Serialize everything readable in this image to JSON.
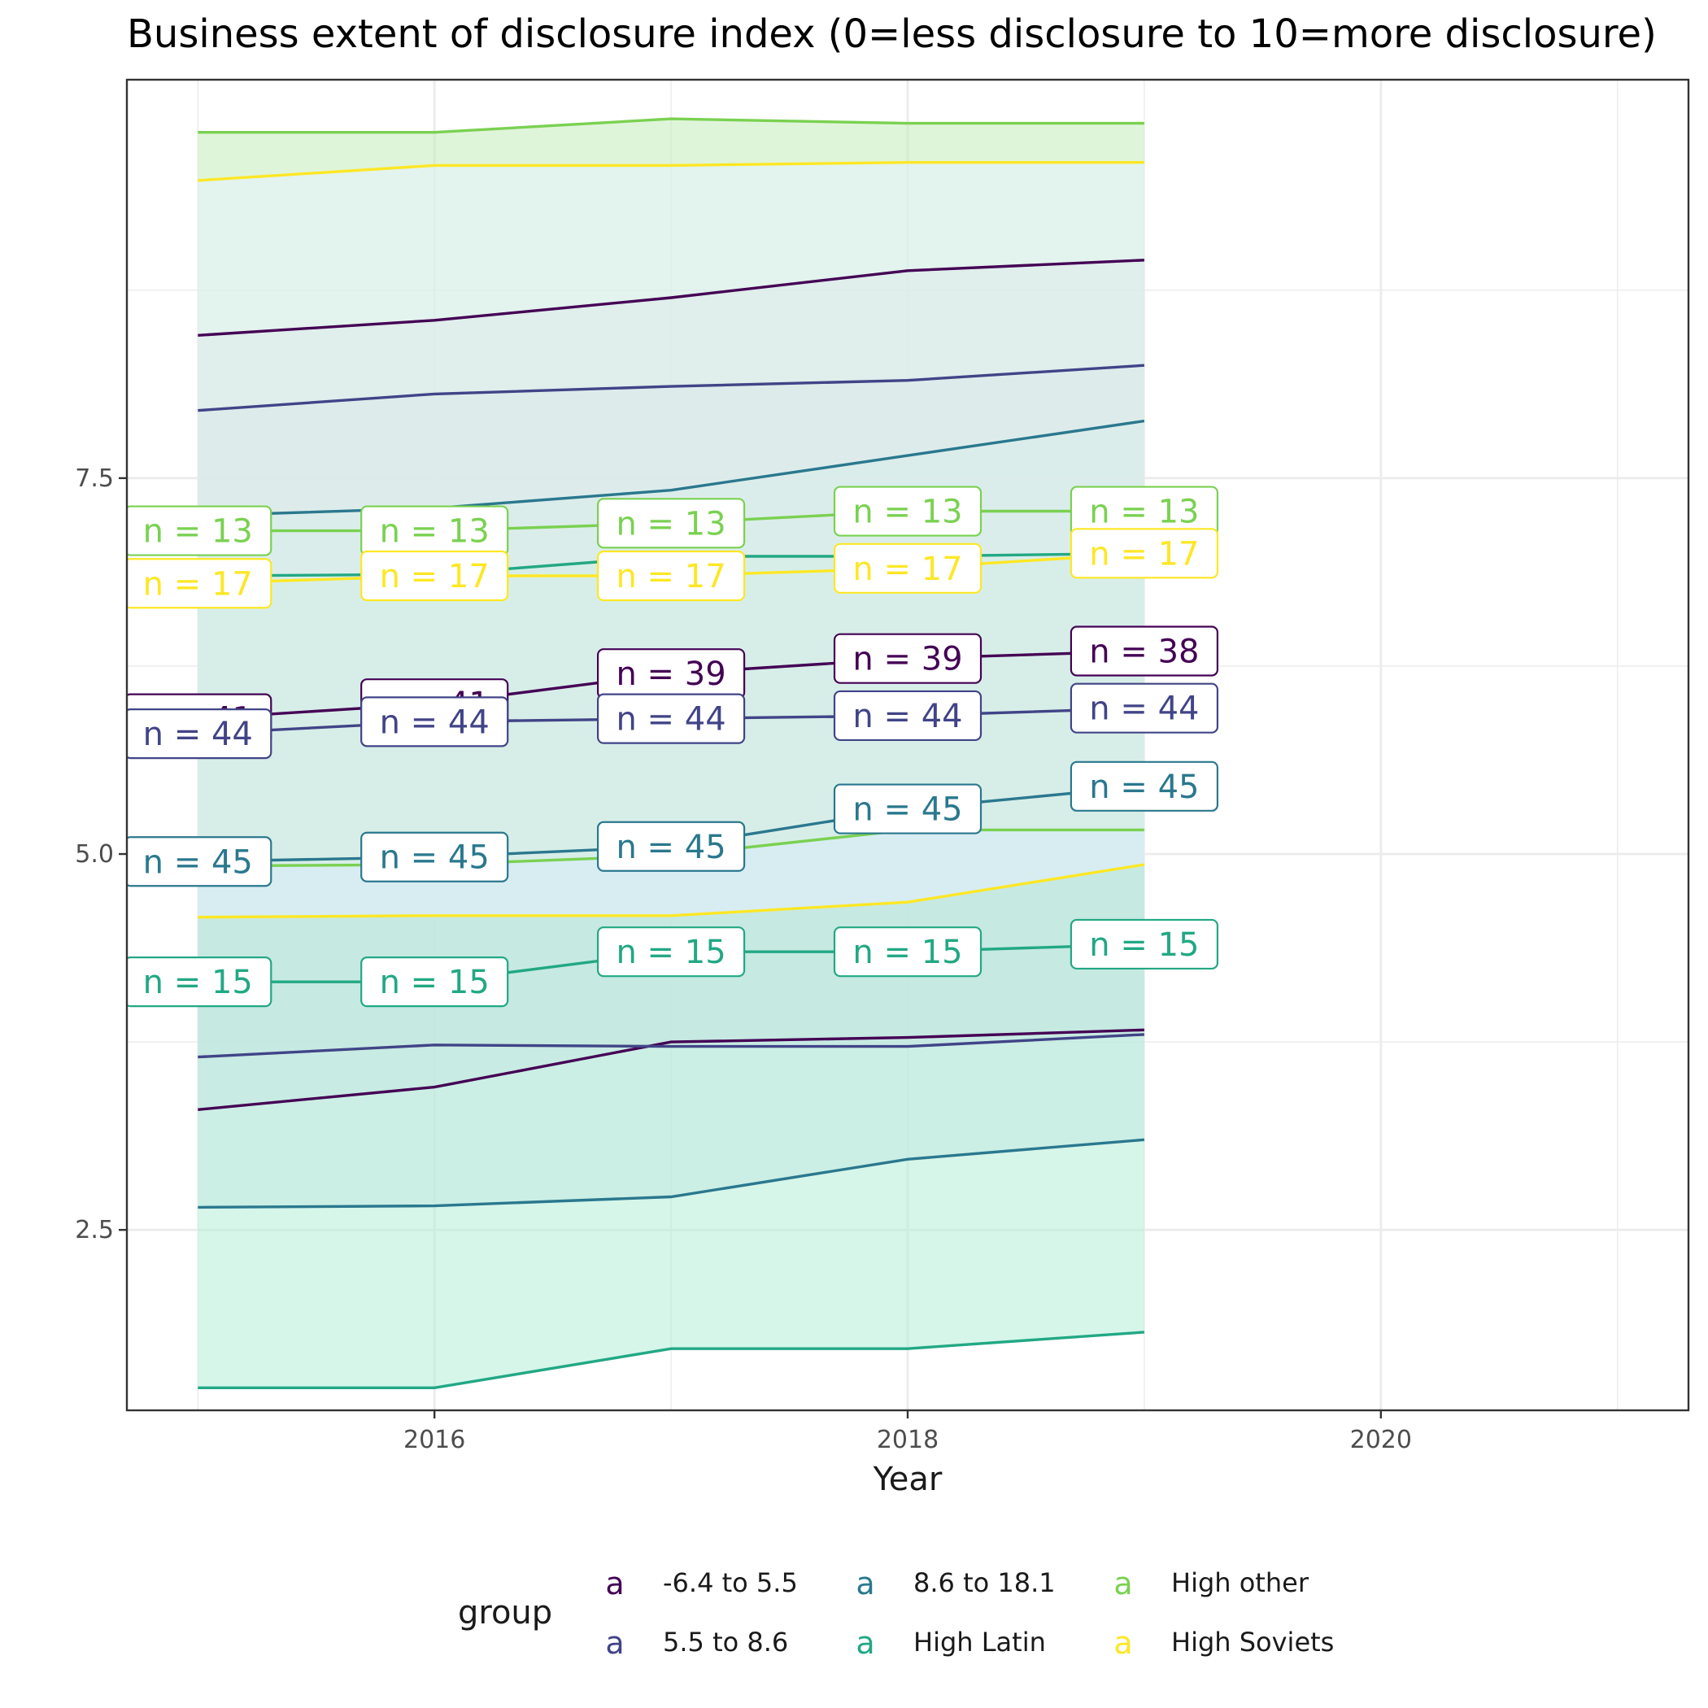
{
  "chart_data": {
    "type": "line",
    "title": "Business extent of disclosure index (0=less disclosure to 10=more disclosure)",
    "xlabel": "Year",
    "ylabel": "",
    "xlim": [
      2014.7,
      2021.3
    ],
    "ylim": [
      1.3,
      10.15
    ],
    "x_ticks": [
      2016,
      2018,
      2020
    ],
    "x_tick_labels": [
      "2016",
      "2018",
      "2020"
    ],
    "y_ticks": [
      2.5,
      5.0,
      7.5
    ],
    "y_tick_labels": [
      "2.5",
      "5.0",
      "7.5"
    ],
    "grid": true,
    "legend": {
      "title": "group",
      "position": "bottom",
      "key_glyph": "a",
      "entries": [
        {
          "label": "-6.4 to 5.5",
          "color": "#440154"
        },
        {
          "label": "5.5 to 8.6",
          "color": "#414487"
        },
        {
          "label": "8.6 to 18.1",
          "color": "#2A788E"
        },
        {
          "label": "High Latin",
          "color": "#22A884"
        },
        {
          "label": "High other",
          "color": "#7AD151"
        },
        {
          "label": "High Soviets",
          "color": "#FDE725"
        }
      ]
    },
    "x": [
      2015,
      2016,
      2017,
      2018,
      2019
    ],
    "series": [
      {
        "name": "-6.4 to 5.5",
        "color": "#440154",
        "band_fill": "#e8d6ee",
        "mean": [
          5.9,
          6.0,
          6.2,
          6.3,
          6.35
        ],
        "upper": [
          8.45,
          8.55,
          8.7,
          8.88,
          8.95
        ],
        "lower": [
          3.3,
          3.45,
          3.75,
          3.78,
          3.83
        ],
        "n": [
          41,
          41,
          39,
          39,
          38
        ]
      },
      {
        "name": "5.5 to 8.6",
        "color": "#414487",
        "band_fill": "#d9d9ec",
        "mean": [
          5.8,
          5.88,
          5.9,
          5.92,
          5.97
        ],
        "upper": [
          7.95,
          8.06,
          8.11,
          8.15,
          8.25
        ],
        "lower": [
          3.65,
          3.73,
          3.72,
          3.72,
          3.8
        ],
        "n": [
          44,
          44,
          44,
          44,
          44
        ]
      },
      {
        "name": "8.6 to 18.1",
        "color": "#2A788E",
        "band_fill": "#d4e4ea",
        "mean": [
          4.95,
          4.98,
          5.05,
          5.3,
          5.45
        ],
        "upper": [
          7.25,
          7.3,
          7.42,
          7.65,
          7.88
        ],
        "lower": [
          2.65,
          2.66,
          2.72,
          2.97,
          3.1
        ],
        "n": [
          45,
          45,
          45,
          45,
          45
        ]
      },
      {
        "name": "High Latin",
        "color": "#22A884",
        "band_fill": "#b4eed9",
        "mean": [
          4.15,
          4.15,
          4.35,
          4.35,
          4.4
        ],
        "upper": [
          6.85,
          6.86,
          6.98,
          6.98,
          7.0
        ],
        "lower": [
          1.45,
          1.45,
          1.71,
          1.71,
          1.82
        ],
        "n": [
          15,
          15,
          15,
          15,
          15
        ]
      },
      {
        "name": "High other",
        "color": "#7AD151",
        "band_fill": "#c4ecb9",
        "mean": [
          7.15,
          7.15,
          7.2,
          7.28,
          7.28
        ],
        "upper": [
          9.8,
          9.8,
          9.89,
          9.86,
          9.86
        ],
        "lower": [
          4.92,
          4.93,
          4.99,
          5.16,
          5.16
        ],
        "n": [
          13,
          13,
          13,
          13,
          13
        ]
      },
      {
        "name": "High Soviets",
        "color": "#FDE725",
        "band_fill": "#e6f0ff",
        "mean": [
          6.8,
          6.85,
          6.85,
          6.9,
          7.0
        ],
        "upper": [
          9.48,
          9.58,
          9.58,
          9.6,
          9.6
        ],
        "lower": [
          4.58,
          4.59,
          4.59,
          4.68,
          4.93
        ],
        "n": [
          17,
          17,
          17,
          17,
          17
        ]
      }
    ]
  }
}
